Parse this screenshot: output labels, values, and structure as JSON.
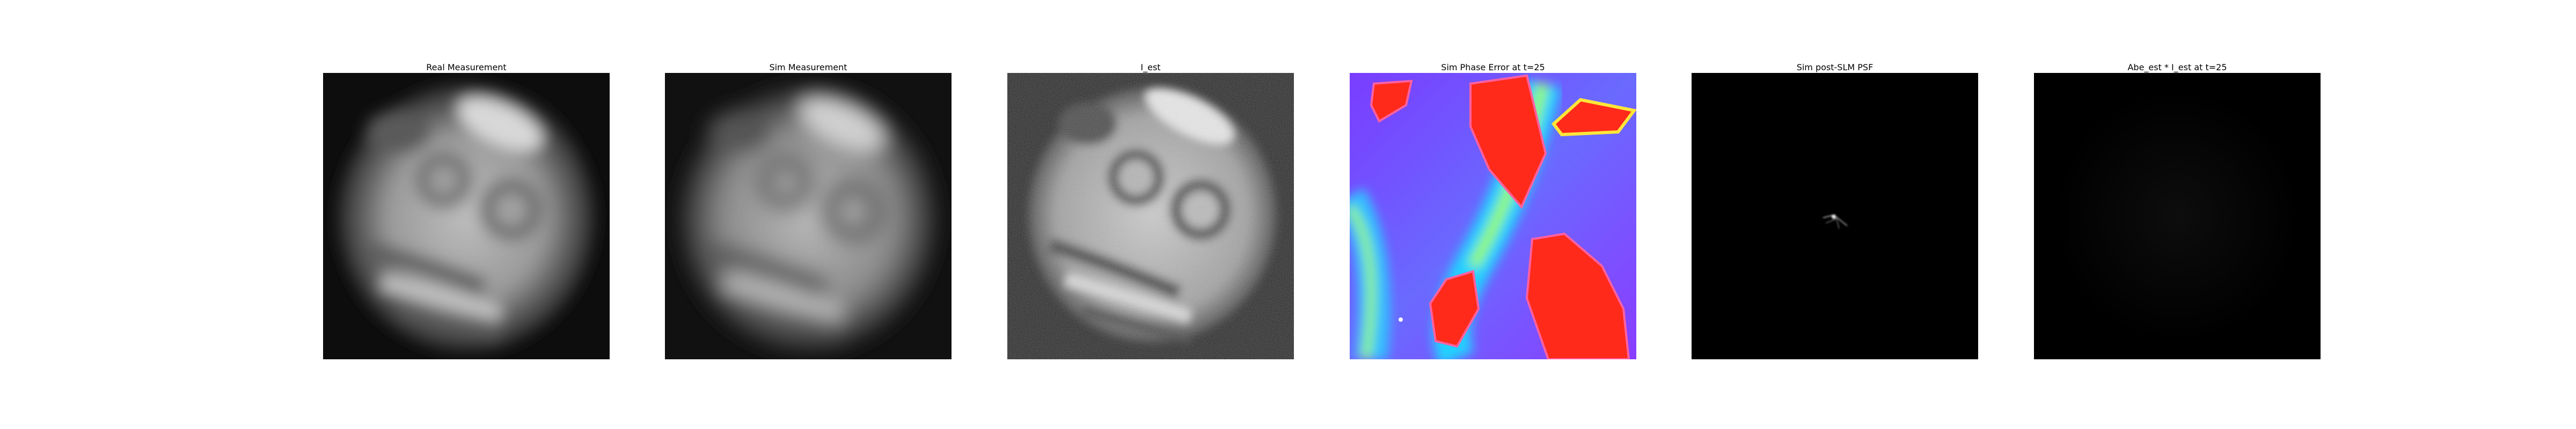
{
  "panels": [
    {
      "title": "Real Measurement"
    },
    {
      "title": "Sim Measurement"
    },
    {
      "title": "I_est"
    },
    {
      "title": "Sim Phase Error at t=25"
    },
    {
      "title": "Sim post-SLM PSF"
    },
    {
      "title": "Abe_est * I_est at t=25"
    }
  ]
}
